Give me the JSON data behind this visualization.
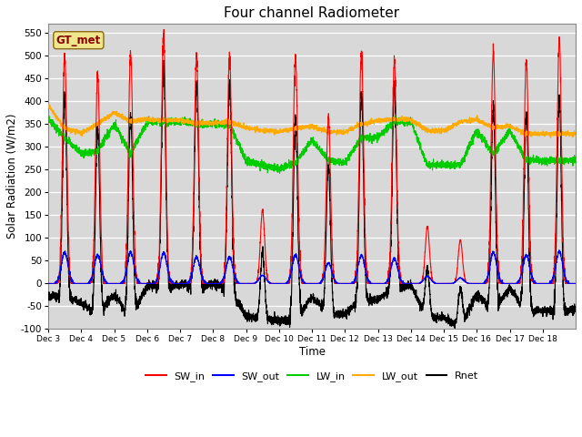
{
  "title": "Four channel Radiometer",
  "xlabel": "Time",
  "ylabel": "Solar Radiation (W/m2)",
  "ylim": [
    -100,
    570
  ],
  "yticks": [
    -100,
    -50,
    0,
    50,
    100,
    150,
    200,
    250,
    300,
    350,
    400,
    450,
    500,
    550
  ],
  "xtick_labels": [
    "Dec 3",
    "Dec 4",
    "Dec 5",
    "Dec 6",
    "Dec 7",
    "Dec 8",
    "Dec 9",
    "Dec 10",
    "Dec 11",
    "Dec 12",
    "Dec 13",
    "Dec 14",
    "Dec 15",
    "Dec 16",
    "Dec 17",
    "Dec 18"
  ],
  "colors": {
    "SW_in": "#ff0000",
    "SW_out": "#0000ff",
    "LW_in": "#00cc00",
    "LW_out": "#ffaa00",
    "Rnet": "#000000"
  },
  "legend_label": "GT_met",
  "legend_label_color": "#8b0000",
  "legend_label_bg": "#f0e68c",
  "bg_color": "#d8d8d8",
  "n_days": 16,
  "lw": 0.8,
  "title_fontsize": 11
}
